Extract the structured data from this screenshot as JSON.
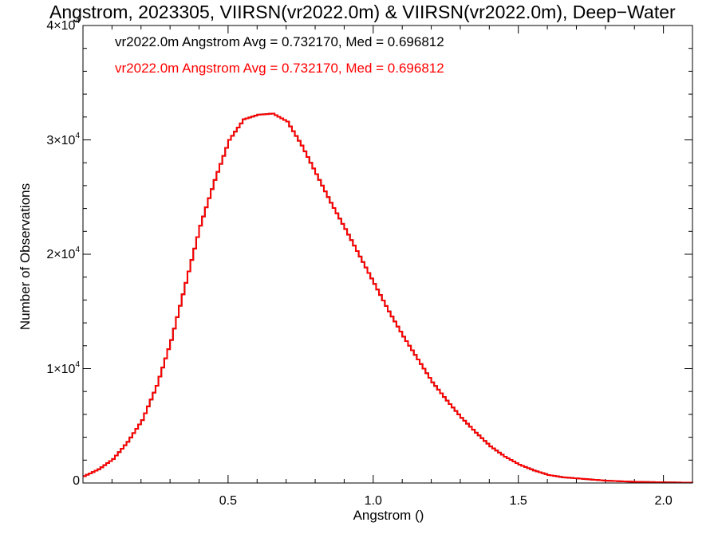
{
  "chart_data": {
    "type": "line",
    "title": "Angstrom, 2023305, VIIRSN(vr2022.0m) & VIIRSN(vr2022.0m), Deep−Water",
    "xlabel": "Angstrom ()",
    "ylabel": "Number of Observations",
    "xlim": [
      0.0,
      2.1
    ],
    "ylim": [
      0,
      40000
    ],
    "grid": false,
    "legend_position": "top-left",
    "x_ticks": [
      {
        "value": 0.5,
        "label": "0.5"
      },
      {
        "value": 1.0,
        "label": "1.0"
      },
      {
        "value": 1.5,
        "label": "1.5"
      },
      {
        "value": 2.0,
        "label": "2.0"
      }
    ],
    "y_ticks": [
      {
        "value": 0,
        "mantissa": "0",
        "exponent": ""
      },
      {
        "value": 10000,
        "mantissa": "1×10",
        "exponent": "4"
      },
      {
        "value": 20000,
        "mantissa": "2×10",
        "exponent": "4"
      },
      {
        "value": 30000,
        "mantissa": "3×10",
        "exponent": "4"
      },
      {
        "value": 40000,
        "mantissa": "4×10",
        "exponent": "4"
      }
    ],
    "series": [
      {
        "name": "vr2022.0m Angstrom Avg = 0.732170, Med = 0.696812",
        "color": "#000000",
        "style": "histogram-step",
        "x": [
          0.0,
          0.05,
          0.1,
          0.15,
          0.2,
          0.25,
          0.3,
          0.35,
          0.4,
          0.45,
          0.5,
          0.55,
          0.6,
          0.65,
          0.7,
          0.75,
          0.8,
          0.85,
          0.9,
          0.95,
          1.0,
          1.05,
          1.1,
          1.15,
          1.2,
          1.25,
          1.3,
          1.35,
          1.4,
          1.45,
          1.5,
          1.55,
          1.6,
          1.65,
          1.7,
          1.75,
          1.8,
          1.85,
          1.9,
          1.95,
          2.0,
          2.05,
          2.1
        ],
        "y": [
          600,
          1200,
          2100,
          3600,
          5500,
          8500,
          12500,
          17500,
          22500,
          26500,
          30000,
          31800,
          32200,
          32300,
          31600,
          29500,
          27000,
          24500,
          22200,
          19800,
          17400,
          15000,
          12800,
          10800,
          8800,
          7200,
          5700,
          4400,
          3200,
          2300,
          1600,
          1100,
          700,
          500,
          400,
          300,
          200,
          150,
          100,
          80,
          60,
          40,
          30
        ]
      },
      {
        "name": "vr2022.0m Angstrom Avg = 0.732170, Med = 0.696812",
        "color": "#ff0000",
        "style": "histogram-step",
        "x": [
          0.0,
          0.05,
          0.1,
          0.15,
          0.2,
          0.25,
          0.3,
          0.35,
          0.4,
          0.45,
          0.5,
          0.55,
          0.6,
          0.65,
          0.7,
          0.75,
          0.8,
          0.85,
          0.9,
          0.95,
          1.0,
          1.05,
          1.1,
          1.15,
          1.2,
          1.25,
          1.3,
          1.35,
          1.4,
          1.45,
          1.5,
          1.55,
          1.6,
          1.65,
          1.7,
          1.75,
          1.8,
          1.85,
          1.9,
          1.95,
          2.0,
          2.05,
          2.1
        ],
        "y": [
          600,
          1200,
          2100,
          3600,
          5500,
          8500,
          12500,
          17500,
          22500,
          26500,
          30000,
          31800,
          32200,
          32300,
          31600,
          29500,
          27000,
          24500,
          22200,
          19800,
          17400,
          15000,
          12800,
          10800,
          8800,
          7200,
          5700,
          4400,
          3200,
          2300,
          1600,
          1100,
          700,
          500,
          400,
          300,
          200,
          150,
          100,
          80,
          60,
          40,
          30
        ]
      }
    ]
  }
}
